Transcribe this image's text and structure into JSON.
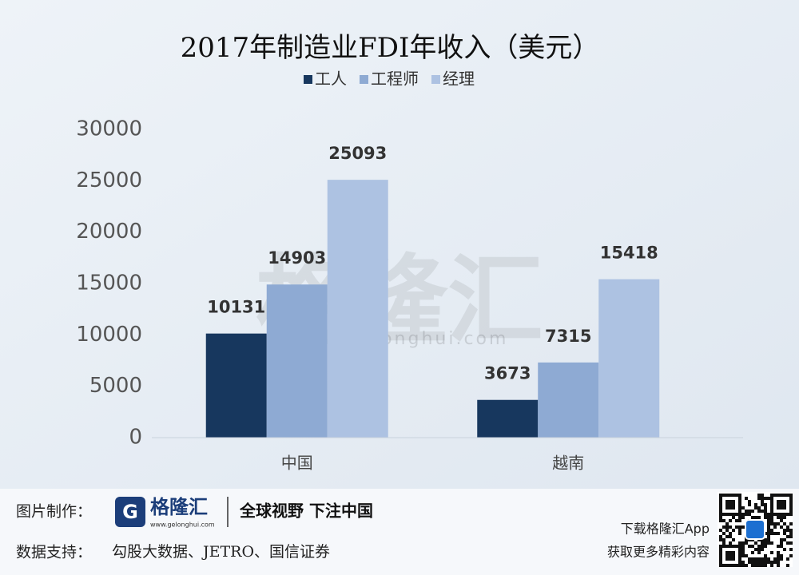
{
  "chart_data": {
    "type": "bar",
    "title": "2017年制造业FDI年收入（美元）",
    "categories": [
      "中国",
      "越南"
    ],
    "series": [
      {
        "name": "工人",
        "color": "#17375e",
        "values": [
          10131,
          3673
        ]
      },
      {
        "name": "工程师",
        "color": "#8eaad3",
        "values": [
          14903,
          7315
        ]
      },
      {
        "name": "经理",
        "color": "#adc2e2",
        "values": [
          25093,
          15418
        ]
      }
    ],
    "ylim": [
      0,
      30000
    ],
    "yticks": [
      0,
      5000,
      10000,
      15000,
      20000,
      25000,
      30000
    ],
    "grid": false,
    "legend": "top",
    "data_labels": true
  },
  "watermark": {
    "logo": "格隆汇",
    "url": "www.gelonghui.com"
  },
  "footer": {
    "made_by_label": "图片制作：",
    "logo": "格隆汇",
    "logo_url": "www.gelonghui.com",
    "slogan": "全球视野 下注中国",
    "source_label": "数据支持：",
    "source": "勾股大数据、JETRO、国信证券",
    "app_line1": "下载格隆汇App",
    "app_line2": "获取更多精彩内容"
  }
}
